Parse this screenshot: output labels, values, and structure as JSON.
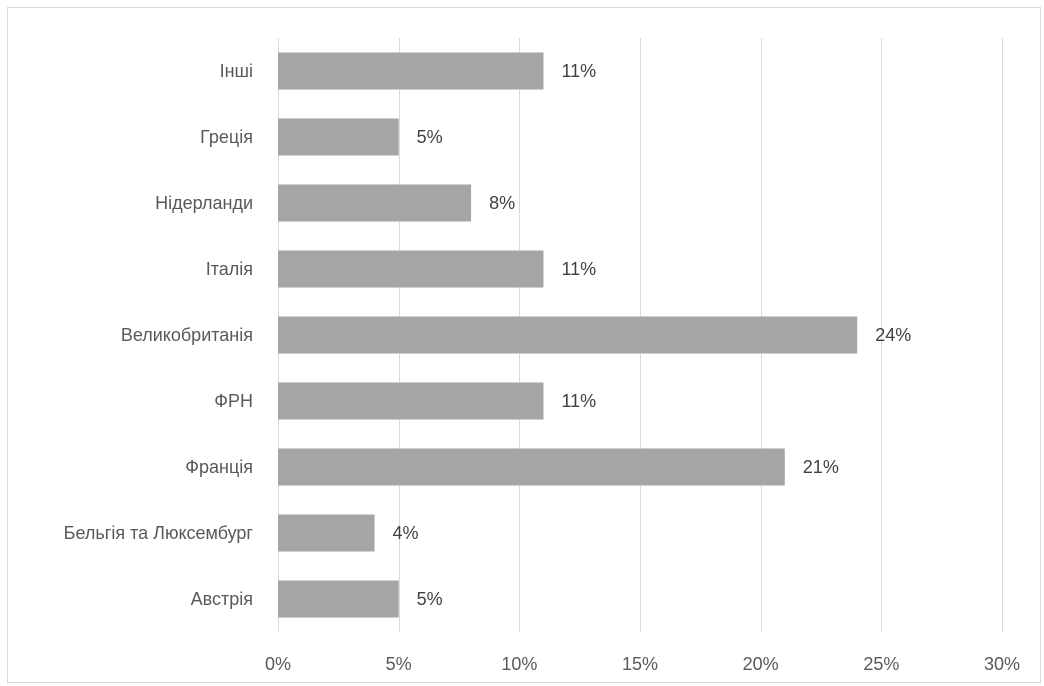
{
  "chart_data": {
    "type": "bar",
    "orientation": "horizontal",
    "categories": [
      "Інші",
      "Греція",
      "Нідерланди",
      "Італія",
      "Великобританія",
      "ФРН",
      "Франція",
      "Бельгія та Люксембург",
      "Австрія"
    ],
    "values": [
      11,
      5,
      8,
      11,
      24,
      11,
      21,
      4,
      5
    ],
    "data_labels": [
      "11%",
      "5%",
      "8%",
      "11%",
      "24%",
      "11%",
      "21%",
      "4%",
      "5%"
    ],
    "xlim": [
      0,
      30
    ],
    "ticks": [
      0,
      5,
      10,
      15,
      20,
      25,
      30
    ],
    "tick_labels": [
      "0%",
      "5%",
      "10%",
      "15%",
      "20%",
      "25%",
      "30%"
    ],
    "title": "",
    "xlabel": "",
    "ylabel": "",
    "grid": "vertical",
    "legend": "none",
    "colors": {
      "bar": "#a5a5a5",
      "grid": "#d9d9d9",
      "axis_text": "#595959",
      "data_label": "#404040"
    }
  }
}
